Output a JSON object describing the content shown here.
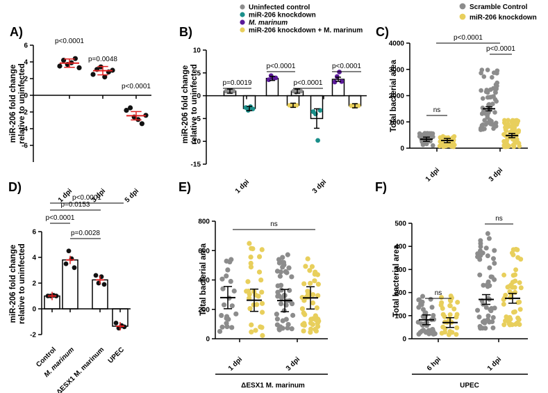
{
  "colors": {
    "grey": "#8c8c8c",
    "teal": "#1a8f8a",
    "purple": "#5b1a99",
    "yellow": "#e8cf5c",
    "black": "#111111",
    "red": "#e02020"
  },
  "panels": {
    "A": {
      "label": "A)",
      "ylabel": [
        "miR-206 fold change",
        "relative to uninfected"
      ]
    },
    "B": {
      "label": "B)",
      "ylabel": [
        "miR-206 fold change",
        "relative to uninfected"
      ]
    },
    "C": {
      "label": "C)",
      "ylabel": "Total bacterial area"
    },
    "D": {
      "label": "D)",
      "ylabel": [
        "miR-206 fold change",
        "relative to uninfected"
      ]
    },
    "E": {
      "label": "E)",
      "ylabel": "Total bacterial area",
      "group": "ΔESX1 M. marinum"
    },
    "F": {
      "label": "F)",
      "ylabel": "Total bacterial area",
      "group": "UPEC"
    }
  },
  "legendB": [
    "Uninfected control",
    "miR-206 knockdown",
    "M. marinum",
    "miR-206 knockdown + M. marinum"
  ],
  "legendC": [
    "Scramble Control",
    "miR-206 knockdown"
  ],
  "chart_data": [
    {
      "panel": "A",
      "type": "scatter",
      "categories": [
        "1 dpi",
        "3 dpi",
        "5 dpi"
      ],
      "ylim": [
        -8,
        6
      ],
      "yticks": [
        -6,
        -4,
        -2,
        0,
        2,
        4,
        6
      ],
      "series": [
        {
          "values": [
            [
              3.5,
              4.2,
              3.7,
              3.9,
              4.4,
              3.3
            ],
            [
              2.5,
              3.1,
              3.4,
              2.2,
              2.8,
              3.0
            ],
            [
              -1.8,
              -1.5,
              -2.6,
              -2.9,
              -3.4,
              -2.4
            ]
          ]
        }
      ],
      "means": [
        3.85,
        2.95,
        -2.45
      ],
      "annotations": [
        "p<0.0001",
        "p=0.0048",
        "p<0.0001"
      ]
    },
    {
      "panel": "B",
      "type": "bar",
      "categories": [
        "1 dpi",
        "3 dpi"
      ],
      "ylim": [
        -15,
        10
      ],
      "yticks": [
        -15,
        -10,
        -5,
        0,
        5,
        10
      ],
      "series": [
        {
          "name": "Uninfected control",
          "values": [
            1,
            1
          ],
          "points": [
            [
              1,
              1.1,
              0.9,
              1
            ],
            [
              1,
              0.8,
              1.2,
              1
            ]
          ]
        },
        {
          "name": "miR-206 knockdown",
          "values": [
            -2.8,
            -5
          ],
          "points": [
            [
              -2.6,
              -3.2,
              -2.4,
              -2.9
            ],
            [
              -3.5,
              -4,
              -9.8,
              -3.2
            ]
          ]
        },
        {
          "name": "M. marinum",
          "values": [
            3.8,
            3.6
          ],
          "points": [
            [
              3.5,
              4.4,
              3.8,
              3.9
            ],
            [
              3,
              4.2,
              5.2,
              3.1
            ]
          ]
        },
        {
          "name": "miR-206 knockdown + M. marinum",
          "values": [
            -2.1,
            -2.2
          ],
          "points": [
            [
              -2.1,
              -2.2,
              -2.0,
              -2.1
            ],
            [
              -2.2,
              -2.3,
              -2.1,
              -2.2
            ]
          ]
        }
      ],
      "annotations": [
        "p=0.0019",
        "p<0.0001",
        "p<0.0001",
        "p<0.0001"
      ]
    },
    {
      "panel": "C",
      "type": "scatter",
      "categories": [
        "1 dpi",
        "3 dpi"
      ],
      "ylim": [
        0,
        4000
      ],
      "yticks": [
        0,
        1000,
        2000,
        3000,
        4000
      ],
      "series": [
        {
          "name": "Scramble Control",
          "means": [
            340,
            1500
          ]
        },
        {
          "name": "miR-206 knockdown",
          "means": [
            290,
            480
          ]
        }
      ],
      "annotations": [
        "p<0.0001",
        "ns",
        "p<0.0001"
      ]
    },
    {
      "panel": "D",
      "type": "bar",
      "categories": [
        "Control",
        "M. marinum",
        "ΔESX1 M. marinum",
        "UPEC"
      ],
      "ylim": [
        -2,
        6
      ],
      "yticks": [
        -2,
        0,
        2,
        4,
        6
      ],
      "values": [
        1,
        3.8,
        2.25,
        -1.35
      ],
      "points": [
        [
          1,
          1,
          1.05,
          1
        ],
        [
          3.5,
          4.5,
          3.9,
          3.2
        ],
        [
          2.6,
          2.0,
          2.5,
          1.9
        ],
        [
          -1.1,
          -1.5,
          -1.3,
          -1.4
        ]
      ],
      "annotations": [
        "p<0.0001",
        "p=0.0153",
        "p<0.0001",
        "p=0.0028"
      ]
    },
    {
      "panel": "E",
      "type": "scatter",
      "categories": [
        "1 dpi",
        "3 dpi"
      ],
      "ylim": [
        0,
        800
      ],
      "yticks": [
        0,
        200,
        400,
        600,
        800
      ],
      "means": [
        280,
        262,
        260,
        278
      ],
      "annotations": [
        "ns"
      ]
    },
    {
      "panel": "F",
      "type": "scatter",
      "categories": [
        "6 hpi",
        "1 dpi"
      ],
      "ylim": [
        0,
        500
      ],
      "yticks": [
        0,
        100,
        200,
        300,
        400,
        500
      ],
      "means": [
        82,
        70,
        170,
        175
      ],
      "annotations": [
        "ns",
        "ns"
      ]
    }
  ]
}
